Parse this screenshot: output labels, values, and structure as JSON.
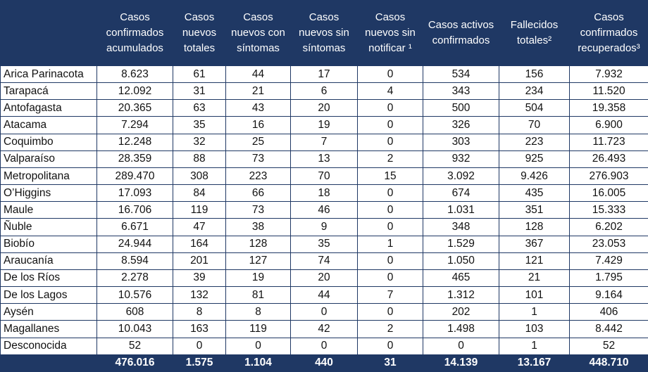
{
  "table": {
    "columns": [
      "Casos confirmados acumulados",
      "Casos nuevos totales",
      "Casos nuevos con síntomas",
      "Casos nuevos sin síntomas",
      "Casos nuevos sin notificar ¹",
      "Casos activos confirmados",
      "Fallecidos totales²",
      "Casos confirmados recuperados³"
    ],
    "rows": [
      [
        "Arica Parinacota",
        "8.623",
        "61",
        "44",
        "17",
        "0",
        "534",
        "156",
        "7.932"
      ],
      [
        "Tarapacá",
        "12.092",
        "31",
        "21",
        "6",
        "4",
        "343",
        "234",
        "11.520"
      ],
      [
        "Antofagasta",
        "20.365",
        "63",
        "43",
        "20",
        "0",
        "500",
        "504",
        "19.358"
      ],
      [
        "Atacama",
        "7.294",
        "35",
        "16",
        "19",
        "0",
        "326",
        "70",
        "6.900"
      ],
      [
        "Coquimbo",
        "12.248",
        "32",
        "25",
        "7",
        "0",
        "303",
        "223",
        "11.723"
      ],
      [
        "Valparaíso",
        "28.359",
        "88",
        "73",
        "13",
        "2",
        "932",
        "925",
        "26.493"
      ],
      [
        "Metropolitana",
        "289.470",
        "308",
        "223",
        "70",
        "15",
        "3.092",
        "9.426",
        "276.903"
      ],
      [
        "O’Higgins",
        "17.093",
        "84",
        "66",
        "18",
        "0",
        "674",
        "435",
        "16.005"
      ],
      [
        "Maule",
        "16.706",
        "119",
        "73",
        "46",
        "0",
        "1.031",
        "351",
        "15.333"
      ],
      [
        "Ñuble",
        "6.671",
        "47",
        "38",
        "9",
        "0",
        "348",
        "128",
        "6.202"
      ],
      [
        "Biobío",
        "24.944",
        "164",
        "128",
        "35",
        "1",
        "1.529",
        "367",
        "23.053"
      ],
      [
        "Araucanía",
        "8.594",
        "201",
        "127",
        "74",
        "0",
        "1.050",
        "121",
        "7.429"
      ],
      [
        "De los Ríos",
        "2.278",
        "39",
        "19",
        "20",
        "0",
        "465",
        "21",
        "1.795"
      ],
      [
        "De los Lagos",
        "10.576",
        "132",
        "81",
        "44",
        "7",
        "1.312",
        "101",
        "9.164"
      ],
      [
        "Aysén",
        "608",
        "8",
        "8",
        "0",
        "0",
        "202",
        "1",
        "406"
      ],
      [
        "Magallanes",
        "10.043",
        "163",
        "119",
        "42",
        "2",
        "1.498",
        "103",
        "8.442"
      ],
      [
        "Desconocida",
        "52",
        "0",
        "0",
        "0",
        "0",
        "0",
        "1",
        "52"
      ]
    ],
    "totals": [
      "476.016",
      "1.575",
      "1.104",
      "440",
      "31",
      "14.139",
      "13.167",
      "448.710"
    ]
  }
}
